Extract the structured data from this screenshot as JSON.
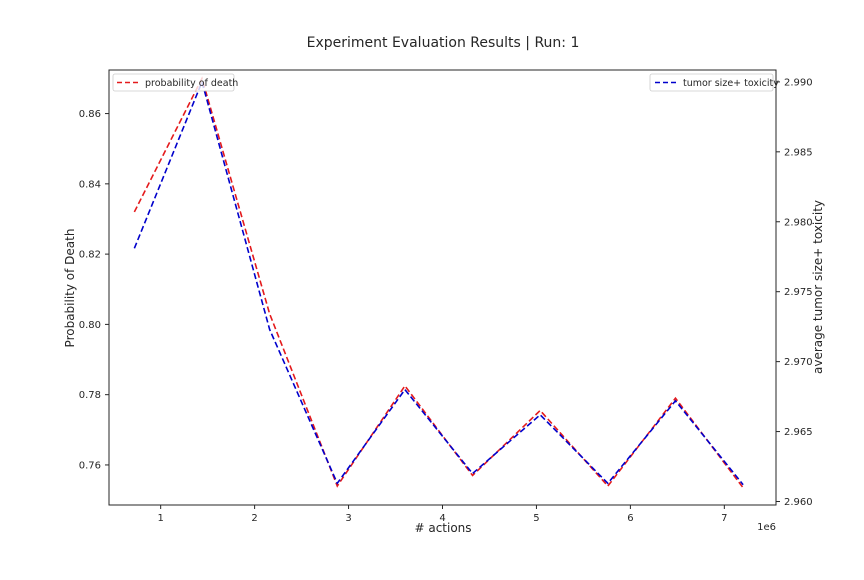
{
  "chart_data": {
    "type": "line",
    "title": "Experiment Evaluation Results | Run: 1",
    "xlabel": "# actions",
    "x_offset_label": "1e6",
    "ylabel_left": "Probability of Death",
    "ylabel_right": "average tumor size+ toxicity",
    "xlim": [
      0.45,
      7.55
    ],
    "xticks": [
      1,
      2,
      3,
      4,
      5,
      6,
      7
    ],
    "ylim_left": [
      0.7486,
      0.8724
    ],
    "yticks_left": [
      0.76,
      0.78,
      0.8,
      0.82,
      0.84,
      0.86
    ],
    "ylim_right": [
      2.95975,
      2.99085
    ],
    "yticks_right": [
      2.96,
      2.965,
      2.97,
      2.975,
      2.98,
      2.985,
      2.99
    ],
    "x": [
      0.72,
      1.44,
      2.16,
      2.88,
      3.6,
      4.32,
      5.04,
      5.76,
      6.48,
      7.2
    ],
    "series": [
      {
        "name": "probability of death",
        "axis": "left",
        "color": "#e41a1c",
        "values": [
          0.832,
          0.87,
          0.803,
          0.754,
          0.7825,
          0.757,
          0.7755,
          0.754,
          0.779,
          0.7535
        ]
      },
      {
        "name": "tumor size+ toxicity",
        "axis": "right",
        "color": "#0000cc",
        "values": [
          2.9781,
          2.99,
          2.9723,
          2.9613,
          2.968,
          2.962,
          2.9662,
          2.9613,
          2.9672,
          2.9612
        ]
      }
    ],
    "legend_left_position": "upper-left",
    "legend_right_position": "upper-right",
    "grid": false
  }
}
